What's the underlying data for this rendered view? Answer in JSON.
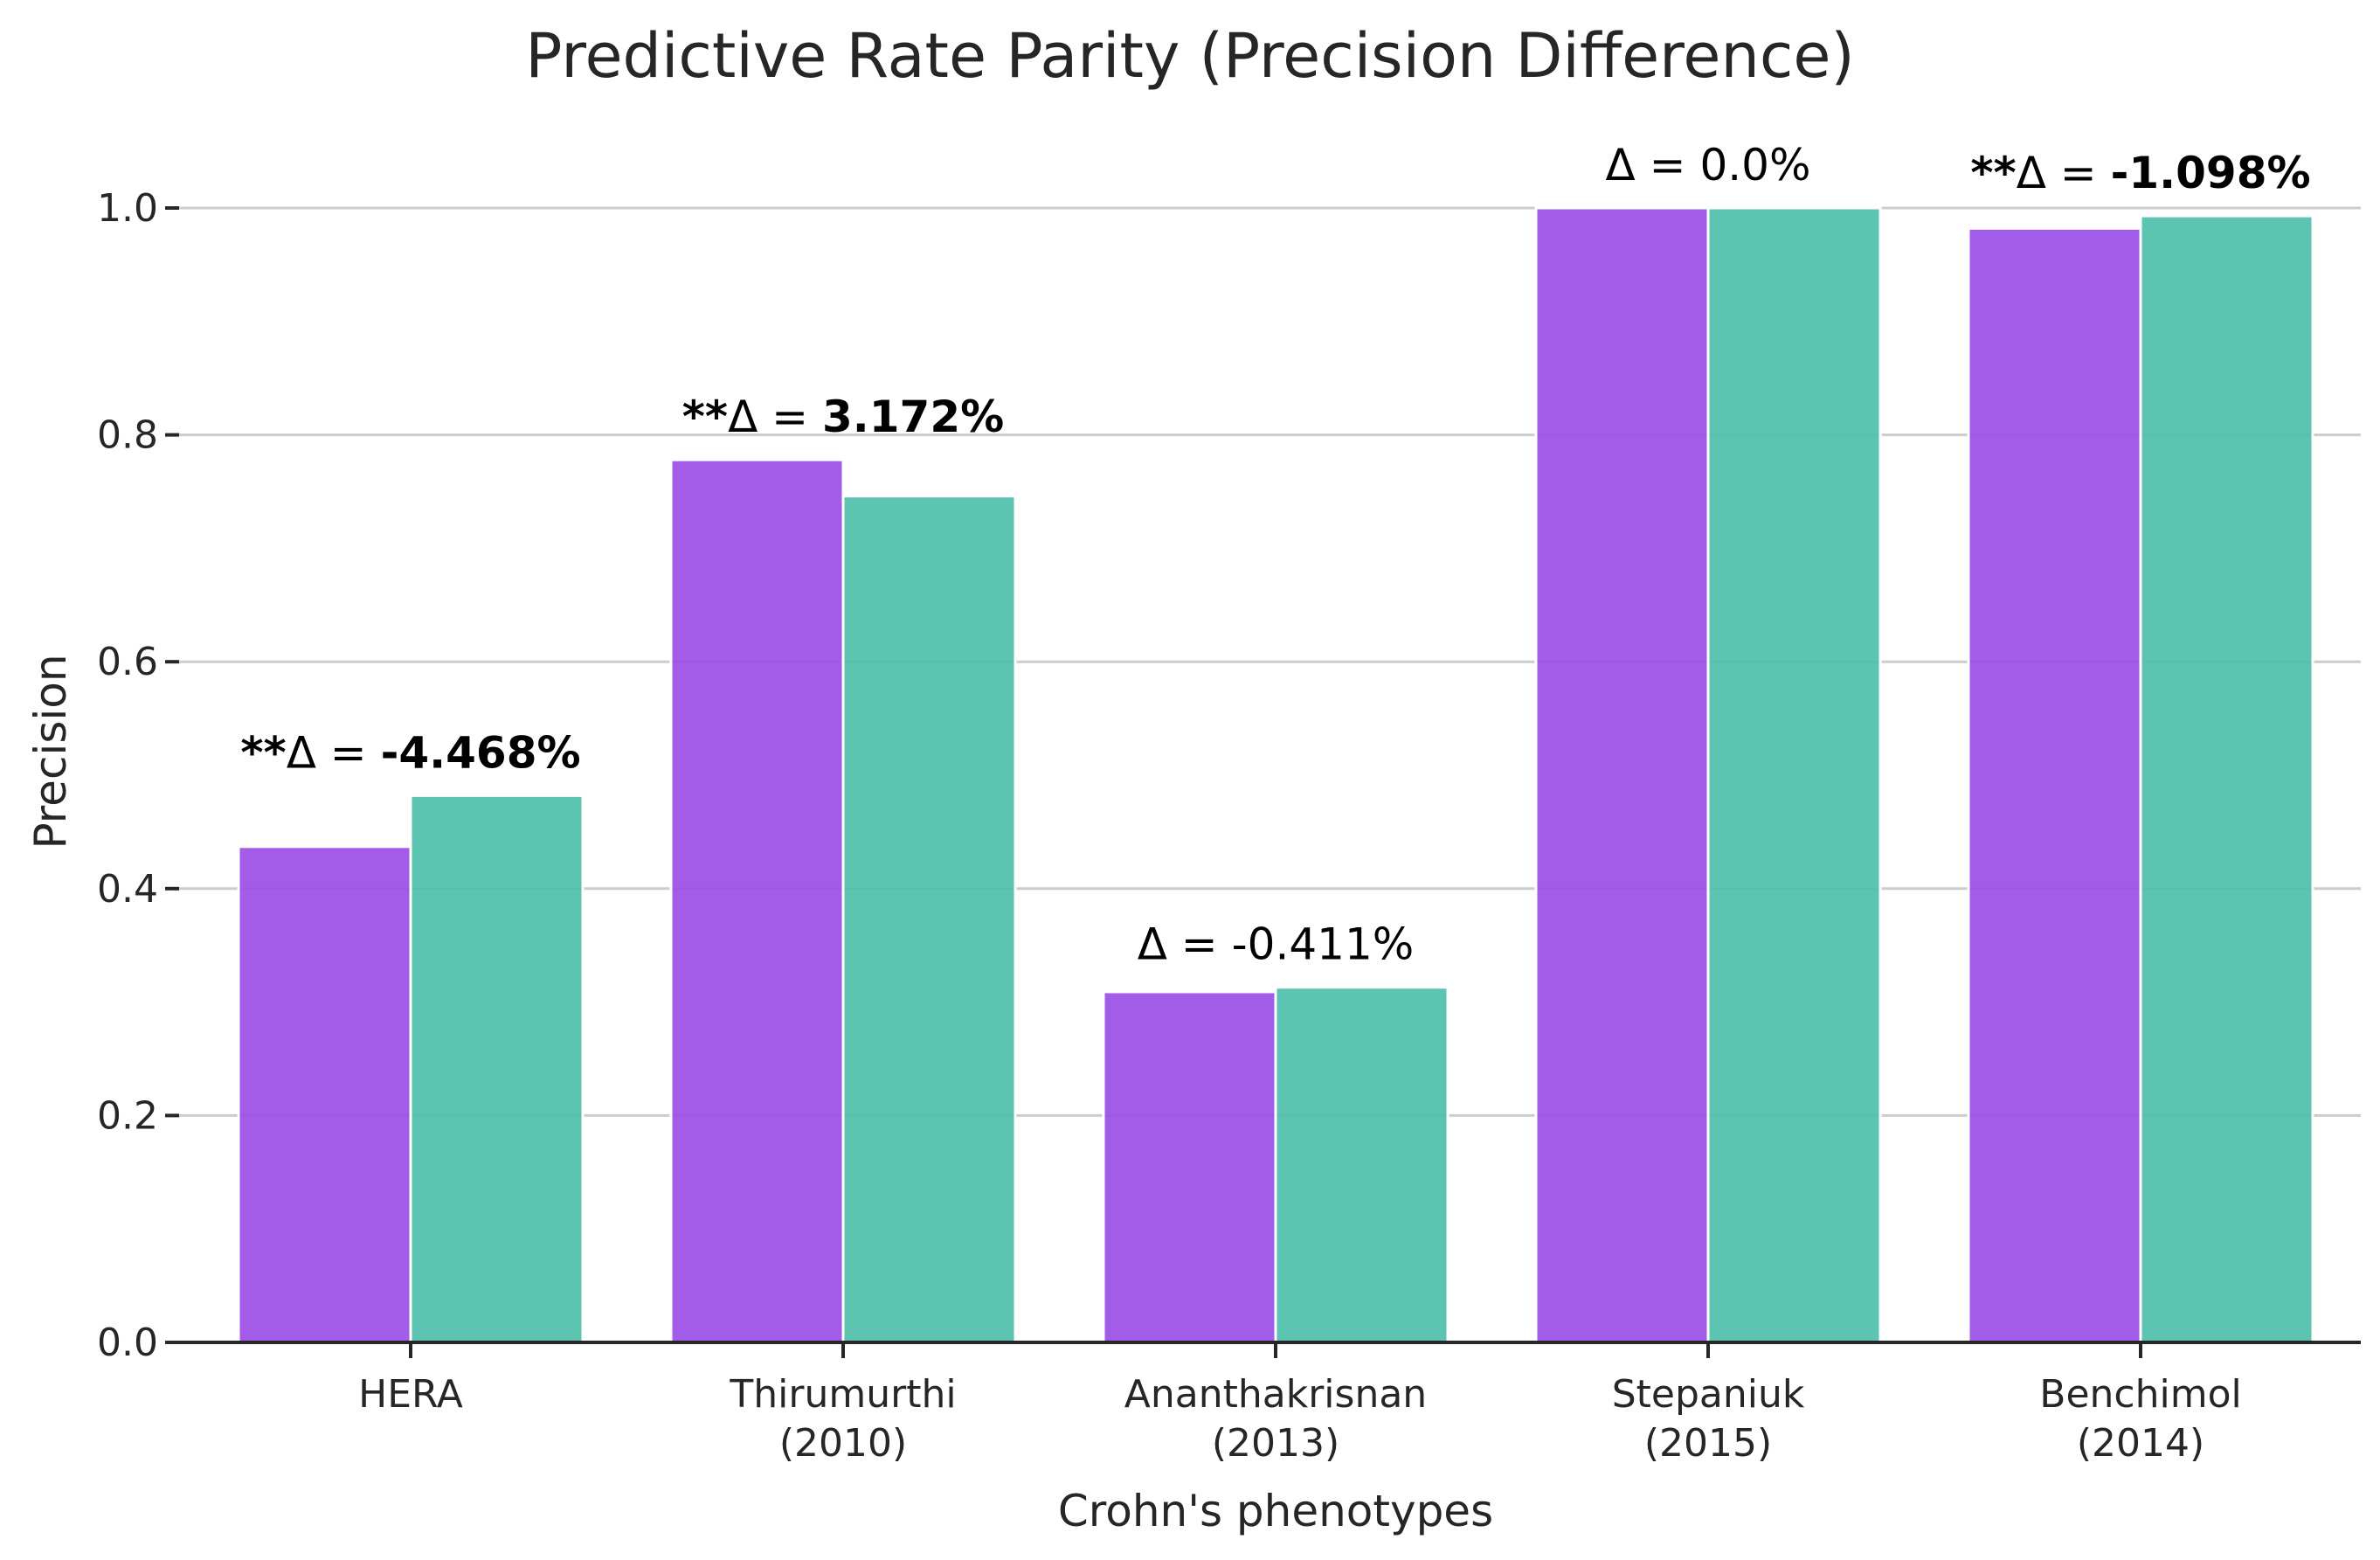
{
  "chart_data": {
    "type": "bar",
    "title": "Predictive Rate Parity (Precision Difference)",
    "xlabel": "Crohn's phenotypes",
    "ylabel": "Precision",
    "ylim": [
      0,
      1.05
    ],
    "yticks": [
      "0.0",
      "0.2",
      "0.4",
      "0.6",
      "0.8",
      "1.0"
    ],
    "grid": "horizontal",
    "categories": [
      [
        "HERA"
      ],
      [
        "Thirumurthi",
        "(2010)"
      ],
      [
        "Ananthakrisnan",
        "(2013)"
      ],
      [
        "Stepaniuk",
        "(2015)"
      ],
      [
        "Benchimol",
        "(2014)"
      ]
    ],
    "series": [
      {
        "color": "#9b4ee6",
        "values": [
          0.437,
          0.778,
          0.309,
          1.0,
          0.982
        ]
      },
      {
        "color": "#4fbfaa",
        "values": [
          0.482,
          0.746,
          0.313,
          1.0,
          0.993
        ]
      }
    ],
    "annotations": [
      {
        "prefix": "**",
        "symbol": "Δ",
        "eq": " = ",
        "value": "-4.468%",
        "bold": true
      },
      {
        "prefix": "**",
        "symbol": "Δ",
        "eq": " = ",
        "value": "3.172%",
        "bold": true
      },
      {
        "prefix": "",
        "symbol": "Δ",
        "eq": " = ",
        "value": "-0.411%",
        "bold": false
      },
      {
        "prefix": "",
        "symbol": "Δ",
        "eq": " = ",
        "value": "0.0%",
        "bold": false
      },
      {
        "prefix": "**",
        "symbol": "Δ",
        "eq": " = ",
        "value": "-1.098%",
        "bold": true
      }
    ]
  }
}
